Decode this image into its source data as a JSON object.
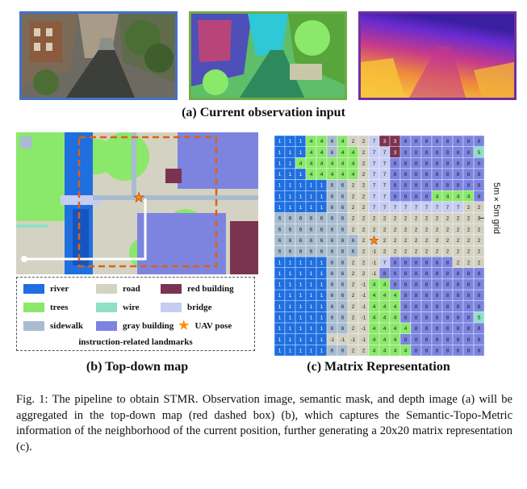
{
  "panel_a": {
    "caption": "(a) Current observation input",
    "images": [
      {
        "name": "observation-image",
        "border": "#4472c4"
      },
      {
        "name": "semantic-mask",
        "border": "#70ad47"
      },
      {
        "name": "depth-image",
        "border": "#7030a0"
      }
    ]
  },
  "panel_b": {
    "caption": "(b) Top-down map",
    "legend": [
      {
        "label": "river",
        "color": "#1f6fe0"
      },
      {
        "label": "road",
        "color": "#d4d2c2"
      },
      {
        "label": "red building",
        "color": "#7a3450"
      },
      {
        "label": "trees",
        "color": "#8ae86a"
      },
      {
        "label": "wire",
        "color": "#8ee0c6"
      },
      {
        "label": "bridge",
        "color": "#c6ccf2"
      },
      {
        "label": "sidewalk",
        "color": "#a8bcd0"
      },
      {
        "label": "gray building",
        "color": "#7c84e0"
      },
      {
        "label": "UAV pose",
        "color": "#ff8c00",
        "icon": "star-icon"
      }
    ],
    "legend_note": "instruction-related landmarks"
  },
  "panel_c": {
    "caption": "(c) Matrix Representation",
    "grid_label": "5m×5m grid",
    "matrix": [
      [
        1,
        1,
        1,
        4,
        4,
        6,
        4,
        2,
        2,
        7,
        3,
        3,
        8,
        8,
        8,
        8,
        8,
        8,
        8,
        8
      ],
      [
        1,
        1,
        1,
        4,
        4,
        6,
        4,
        4,
        2,
        7,
        7,
        3,
        8,
        8,
        8,
        8,
        8,
        8,
        8,
        5
      ],
      [
        1,
        1,
        4,
        4,
        4,
        4,
        4,
        4,
        2,
        7,
        7,
        8,
        8,
        8,
        8,
        8,
        8,
        8,
        8,
        8
      ],
      [
        1,
        1,
        1,
        4,
        4,
        4,
        4,
        4,
        2,
        7,
        7,
        8,
        8,
        8,
        8,
        8,
        8,
        8,
        8,
        8
      ],
      [
        1,
        1,
        1,
        1,
        1,
        6,
        6,
        2,
        2,
        7,
        7,
        8,
        8,
        8,
        8,
        8,
        8,
        8,
        8,
        8
      ],
      [
        1,
        1,
        1,
        1,
        1,
        6,
        6,
        2,
        2,
        7,
        7,
        8,
        8,
        8,
        8,
        4,
        4,
        4,
        4,
        8
      ],
      [
        1,
        1,
        1,
        1,
        1,
        6,
        6,
        2,
        2,
        7,
        7,
        7,
        7,
        7,
        7,
        7,
        7,
        7,
        2,
        2
      ],
      [
        6,
        6,
        6,
        6,
        6,
        6,
        6,
        2,
        2,
        2,
        2,
        2,
        2,
        2,
        2,
        2,
        2,
        2,
        2,
        2
      ],
      [
        6,
        6,
        6,
        6,
        6,
        6,
        6,
        2,
        2,
        2,
        2,
        2,
        2,
        2,
        2,
        2,
        2,
        2,
        2,
        2
      ],
      [
        6,
        6,
        6,
        6,
        6,
        6,
        6,
        6,
        2,
        2,
        2,
        2,
        2,
        2,
        2,
        2,
        2,
        2,
        2,
        2
      ],
      [
        6,
        6,
        6,
        6,
        6,
        6,
        6,
        6,
        2,
        -1,
        2,
        2,
        2,
        2,
        2,
        2,
        2,
        2,
        2,
        2
      ],
      [
        1,
        1,
        1,
        1,
        1,
        6,
        6,
        2,
        2,
        -1,
        7,
        8,
        8,
        8,
        8,
        8,
        8,
        2,
        2,
        2
      ],
      [
        1,
        1,
        1,
        1,
        1,
        6,
        6,
        2,
        2,
        -1,
        8,
        8,
        8,
        8,
        8,
        8,
        8,
        8,
        8,
        8
      ],
      [
        1,
        1,
        1,
        1,
        1,
        6,
        6,
        2,
        -1,
        4,
        4,
        8,
        8,
        8,
        8,
        8,
        8,
        8,
        8,
        8
      ],
      [
        1,
        1,
        1,
        1,
        1,
        6,
        6,
        2,
        -1,
        4,
        4,
        4,
        8,
        8,
        8,
        8,
        8,
        8,
        8,
        8
      ],
      [
        1,
        1,
        1,
        1,
        1,
        6,
        6,
        2,
        -1,
        4,
        4,
        4,
        8,
        8,
        8,
        8,
        8,
        8,
        8,
        8
      ],
      [
        1,
        1,
        1,
        1,
        1,
        6,
        6,
        2,
        -1,
        4,
        4,
        4,
        8,
        8,
        8,
        8,
        8,
        8,
        8,
        5
      ],
      [
        1,
        1,
        1,
        1,
        1,
        6,
        6,
        2,
        -1,
        4,
        4,
        4,
        4,
        8,
        8,
        8,
        8,
        8,
        8,
        8
      ],
      [
        1,
        1,
        1,
        1,
        1,
        -1,
        -1,
        -1,
        -1,
        4,
        4,
        4,
        8,
        8,
        8,
        8,
        8,
        8,
        8,
        8
      ],
      [
        1,
        1,
        1,
        1,
        1,
        6,
        6,
        2,
        2,
        4,
        4,
        4,
        4,
        8,
        8,
        8,
        8,
        8,
        8,
        8
      ]
    ],
    "uav_cell": {
      "row": 9,
      "col": 9
    },
    "value_colors": {
      "1": "#1f6fe0",
      "2": "#d4d2c2",
      "3": "#7a3450",
      "4": "#8ae86a",
      "5": "#8ee0c6",
      "6": "#a8bcd0",
      "7": "#c6ccf2",
      "8": "#7c84e0",
      "-1": "#d4d2c2"
    }
  },
  "figure_caption": "Fig. 1: The pipeline to obtain STMR. Observation image, semantic mask, and depth image (a) will be aggregated in the top-down map (red dashed box) (b), which captures the Semantic-Topo-Metric information of the neighborhood of the current position, further generating a 20x20 matrix representation (c)."
}
